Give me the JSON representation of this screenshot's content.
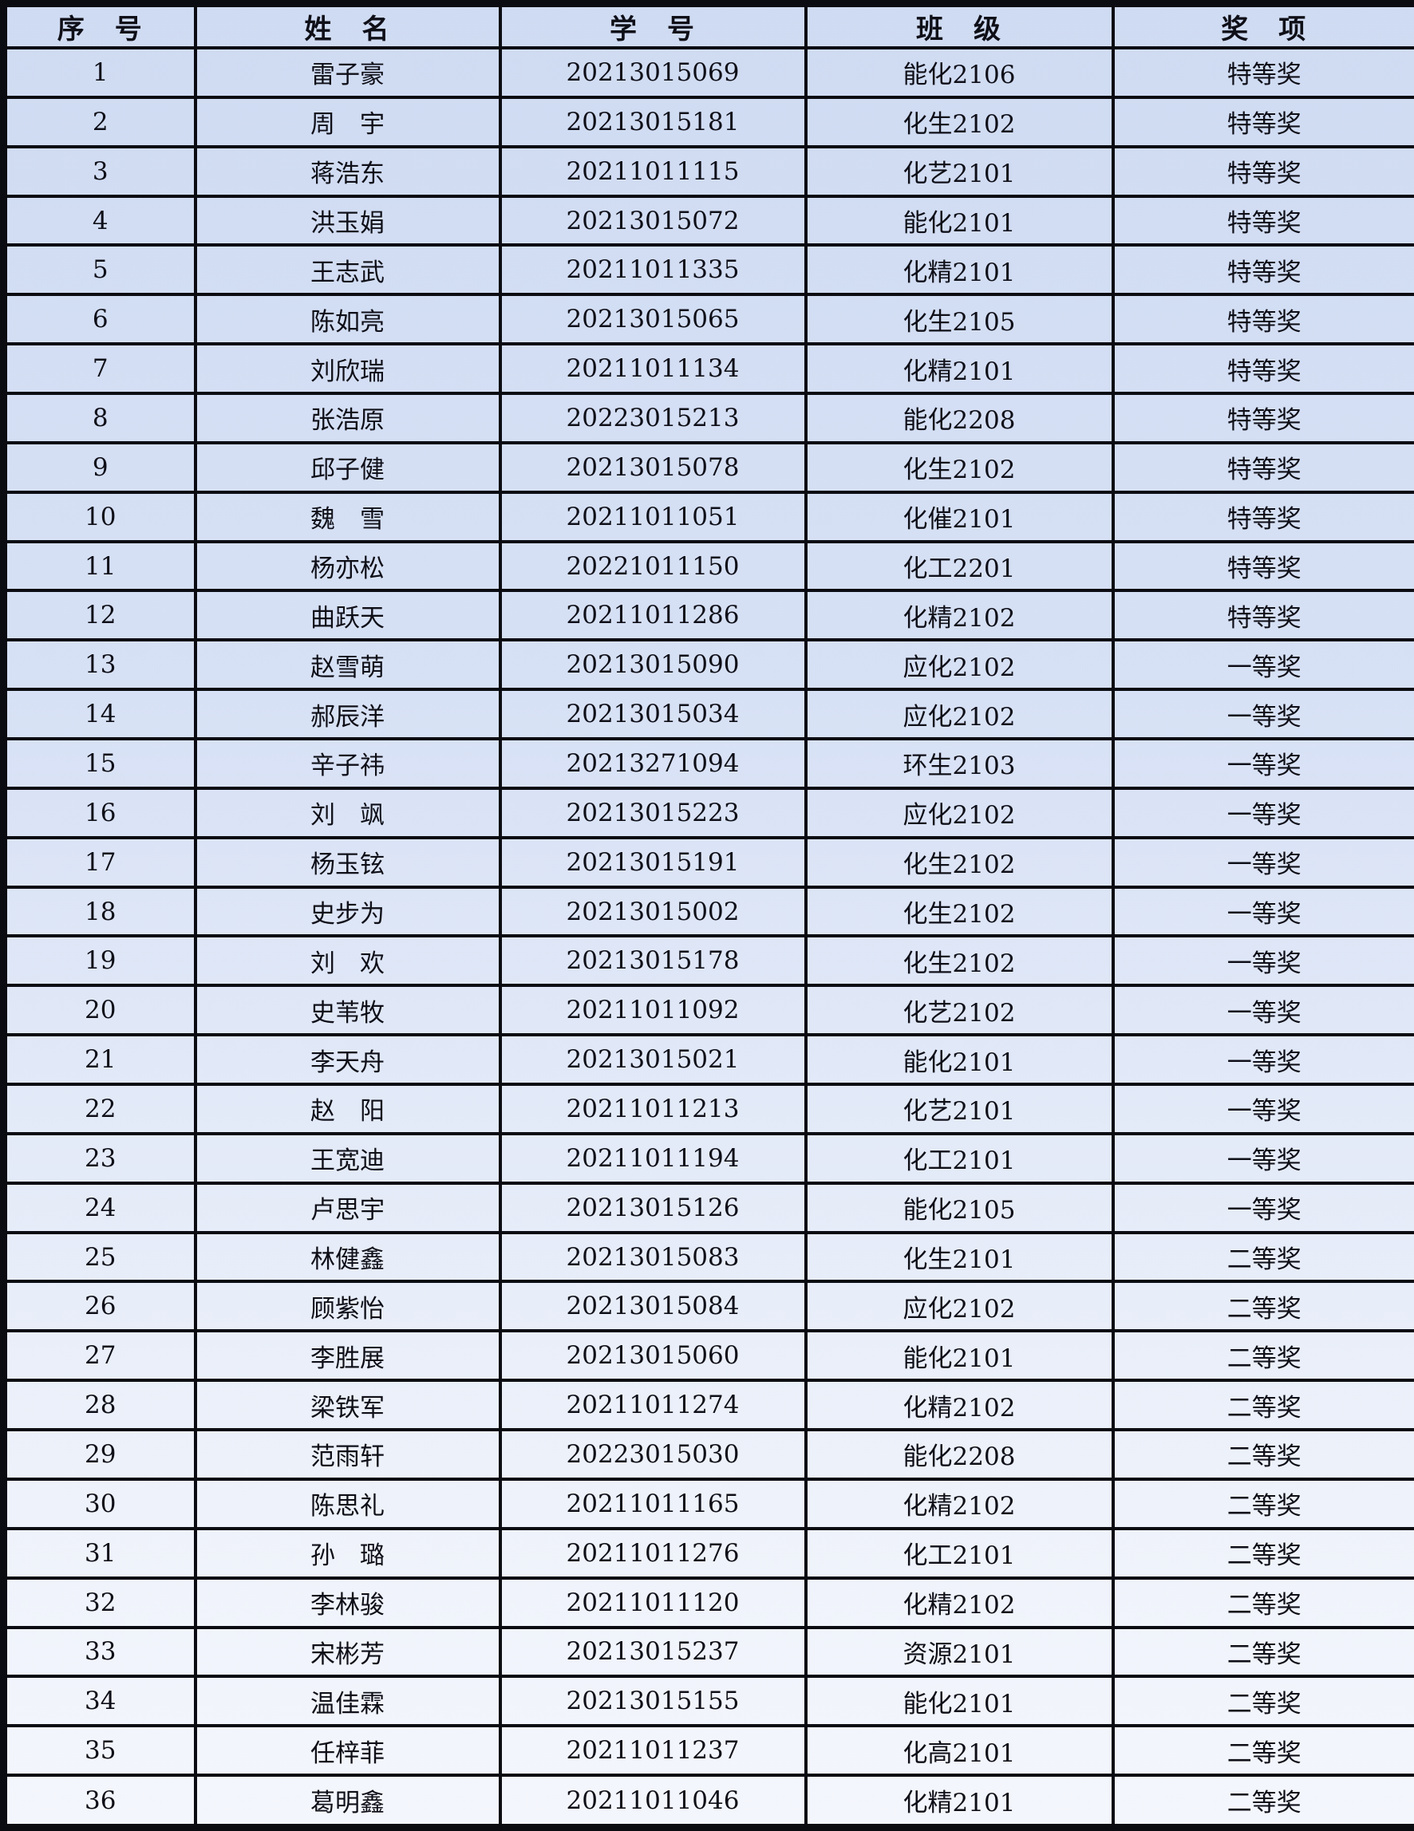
{
  "table": {
    "columns": [
      "序　号",
      "姓　名",
      "学　号",
      "班　级",
      "奖　项"
    ],
    "column_keys": [
      "serial-number",
      "student-name",
      "student-id",
      "class-name",
      "award"
    ],
    "rows": [
      [
        "1",
        "雷子豪",
        "20213015069",
        "能化2106",
        "特等奖"
      ],
      [
        "2",
        "周　宇",
        "20213015181",
        "化生2102",
        "特等奖"
      ],
      [
        "3",
        "蒋浩东",
        "20211011115",
        "化艺2101",
        "特等奖"
      ],
      [
        "4",
        "洪玉娟",
        "20213015072",
        "能化2101",
        "特等奖"
      ],
      [
        "5",
        "王志武",
        "20211011335",
        "化精2101",
        "特等奖"
      ],
      [
        "6",
        "陈如亮",
        "20213015065",
        "化生2105",
        "特等奖"
      ],
      [
        "7",
        "刘欣瑞",
        "20211011134",
        "化精2101",
        "特等奖"
      ],
      [
        "8",
        "张浩原",
        "20223015213",
        "能化2208",
        "特等奖"
      ],
      [
        "9",
        "邱子健",
        "20213015078",
        "化生2102",
        "特等奖"
      ],
      [
        "10",
        "魏　雪",
        "20211011051",
        "化催2101",
        "特等奖"
      ],
      [
        "11",
        "杨亦松",
        "20221011150",
        "化工2201",
        "特等奖"
      ],
      [
        "12",
        "曲跃天",
        "20211011286",
        "化精2102",
        "特等奖"
      ],
      [
        "13",
        "赵雪萌",
        "20213015090",
        "应化2102",
        "一等奖"
      ],
      [
        "14",
        "郝辰洋",
        "20213015034",
        "应化2102",
        "一等奖"
      ],
      [
        "15",
        "辛子祎",
        "20213271094",
        "环生2103",
        "一等奖"
      ],
      [
        "16",
        "刘　飒",
        "20213015223",
        "应化2102",
        "一等奖"
      ],
      [
        "17",
        "杨玉铉",
        "20213015191",
        "化生2102",
        "一等奖"
      ],
      [
        "18",
        "史步为",
        "20213015002",
        "化生2102",
        "一等奖"
      ],
      [
        "19",
        "刘　欢",
        "20213015178",
        "化生2102",
        "一等奖"
      ],
      [
        "20",
        "史苇牧",
        "20211011092",
        "化艺2102",
        "一等奖"
      ],
      [
        "21",
        "李天舟",
        "20213015021",
        "能化2101",
        "一等奖"
      ],
      [
        "22",
        "赵　阳",
        "20211011213",
        "化艺2101",
        "一等奖"
      ],
      [
        "23",
        "王宽迪",
        "20211011194",
        "化工2101",
        "一等奖"
      ],
      [
        "24",
        "卢思宇",
        "20213015126",
        "能化2105",
        "一等奖"
      ],
      [
        "25",
        "林健鑫",
        "20213015083",
        "化生2101",
        "二等奖"
      ],
      [
        "26",
        "顾紫怡",
        "20213015084",
        "应化2102",
        "二等奖"
      ],
      [
        "27",
        "李胜展",
        "20213015060",
        "能化2101",
        "二等奖"
      ],
      [
        "28",
        "梁铁军",
        "20211011274",
        "化精2102",
        "二等奖"
      ],
      [
        "29",
        "范雨轩",
        "20223015030",
        "能化2208",
        "二等奖"
      ],
      [
        "30",
        "陈思礼",
        "20211011165",
        "化精2102",
        "二等奖"
      ],
      [
        "31",
        "孙　璐",
        "20211011276",
        "化工2101",
        "二等奖"
      ],
      [
        "32",
        "李林骏",
        "20211011120",
        "化精2102",
        "二等奖"
      ],
      [
        "33",
        "宋彬芳",
        "20213015237",
        "资源2101",
        "二等奖"
      ],
      [
        "34",
        "温佳霖",
        "20213015155",
        "能化2101",
        "二等奖"
      ],
      [
        "35",
        "任梓菲",
        "20211011237",
        "化高2101",
        "二等奖"
      ],
      [
        "36",
        "葛明鑫",
        "20211011046",
        "化精2101",
        "二等奖"
      ]
    ]
  },
  "colors": {
    "grid_line": "#0b0b12",
    "background_top": "#cfdbf2",
    "background_bottom": "#f4f6fd",
    "text": "#0f0f18"
  }
}
